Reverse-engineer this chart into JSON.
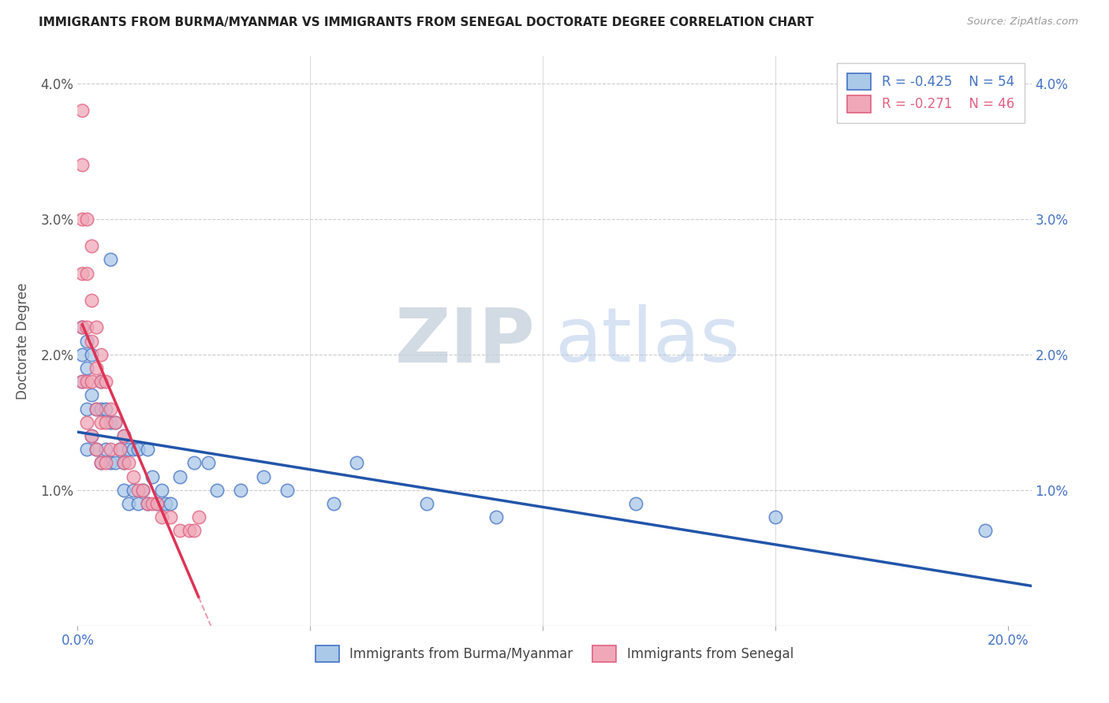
{
  "title": "IMMIGRANTS FROM BURMA/MYANMAR VS IMMIGRANTS FROM SENEGAL DOCTORATE DEGREE CORRELATION CHART",
  "source": "Source: ZipAtlas.com",
  "ylabel": "Doctorate Degree",
  "xlim": [
    0.0,
    0.205
  ],
  "ylim": [
    0.0,
    0.042
  ],
  "color_burma": "#aac8e8",
  "color_burma_edge": "#4472c4",
  "color_senegal": "#f0a8b8",
  "color_senegal_edge": "#e06080",
  "line_color_burma": "#2255aa",
  "line_color_senegal": "#dd3355",
  "watermark_zip_color": "#c8d8e8",
  "watermark_atlas_color": "#b8d0ee",
  "burma_x": [
    0.001,
    0.001,
    0.001,
    0.002,
    0.002,
    0.002,
    0.002,
    0.003,
    0.003,
    0.003,
    0.004,
    0.004,
    0.005,
    0.005,
    0.005,
    0.006,
    0.006,
    0.007,
    0.007,
    0.007,
    0.008,
    0.008,
    0.009,
    0.01,
    0.01,
    0.01,
    0.011,
    0.011,
    0.012,
    0.012,
    0.013,
    0.013,
    0.014,
    0.015,
    0.015,
    0.016,
    0.017,
    0.018,
    0.019,
    0.02,
    0.022,
    0.025,
    0.028,
    0.03,
    0.035,
    0.04,
    0.045,
    0.055,
    0.06,
    0.075,
    0.09,
    0.12,
    0.15,
    0.195
  ],
  "burma_y": [
    0.022,
    0.02,
    0.018,
    0.021,
    0.019,
    0.016,
    0.013,
    0.02,
    0.017,
    0.014,
    0.016,
    0.013,
    0.018,
    0.016,
    0.012,
    0.016,
    0.013,
    0.027,
    0.015,
    0.012,
    0.015,
    0.012,
    0.013,
    0.014,
    0.012,
    0.01,
    0.013,
    0.009,
    0.013,
    0.01,
    0.013,
    0.009,
    0.01,
    0.013,
    0.009,
    0.011,
    0.009,
    0.01,
    0.009,
    0.009,
    0.011,
    0.012,
    0.012,
    0.01,
    0.01,
    0.011,
    0.01,
    0.009,
    0.012,
    0.009,
    0.008,
    0.009,
    0.008,
    0.007
  ],
  "senegal_x": [
    0.001,
    0.001,
    0.001,
    0.001,
    0.001,
    0.001,
    0.002,
    0.002,
    0.002,
    0.002,
    0.002,
    0.003,
    0.003,
    0.003,
    0.003,
    0.003,
    0.004,
    0.004,
    0.004,
    0.004,
    0.005,
    0.005,
    0.005,
    0.005,
    0.006,
    0.006,
    0.006,
    0.007,
    0.007,
    0.008,
    0.009,
    0.01,
    0.01,
    0.011,
    0.012,
    0.013,
    0.014,
    0.015,
    0.016,
    0.017,
    0.018,
    0.02,
    0.022,
    0.024,
    0.025,
    0.026
  ],
  "senegal_y": [
    0.038,
    0.034,
    0.03,
    0.026,
    0.022,
    0.018,
    0.03,
    0.026,
    0.022,
    0.018,
    0.015,
    0.028,
    0.024,
    0.021,
    0.018,
    0.014,
    0.022,
    0.019,
    0.016,
    0.013,
    0.02,
    0.018,
    0.015,
    0.012,
    0.018,
    0.015,
    0.012,
    0.016,
    0.013,
    0.015,
    0.013,
    0.014,
    0.012,
    0.012,
    0.011,
    0.01,
    0.01,
    0.009,
    0.009,
    0.009,
    0.008,
    0.008,
    0.007,
    0.007,
    0.007,
    0.008
  ]
}
